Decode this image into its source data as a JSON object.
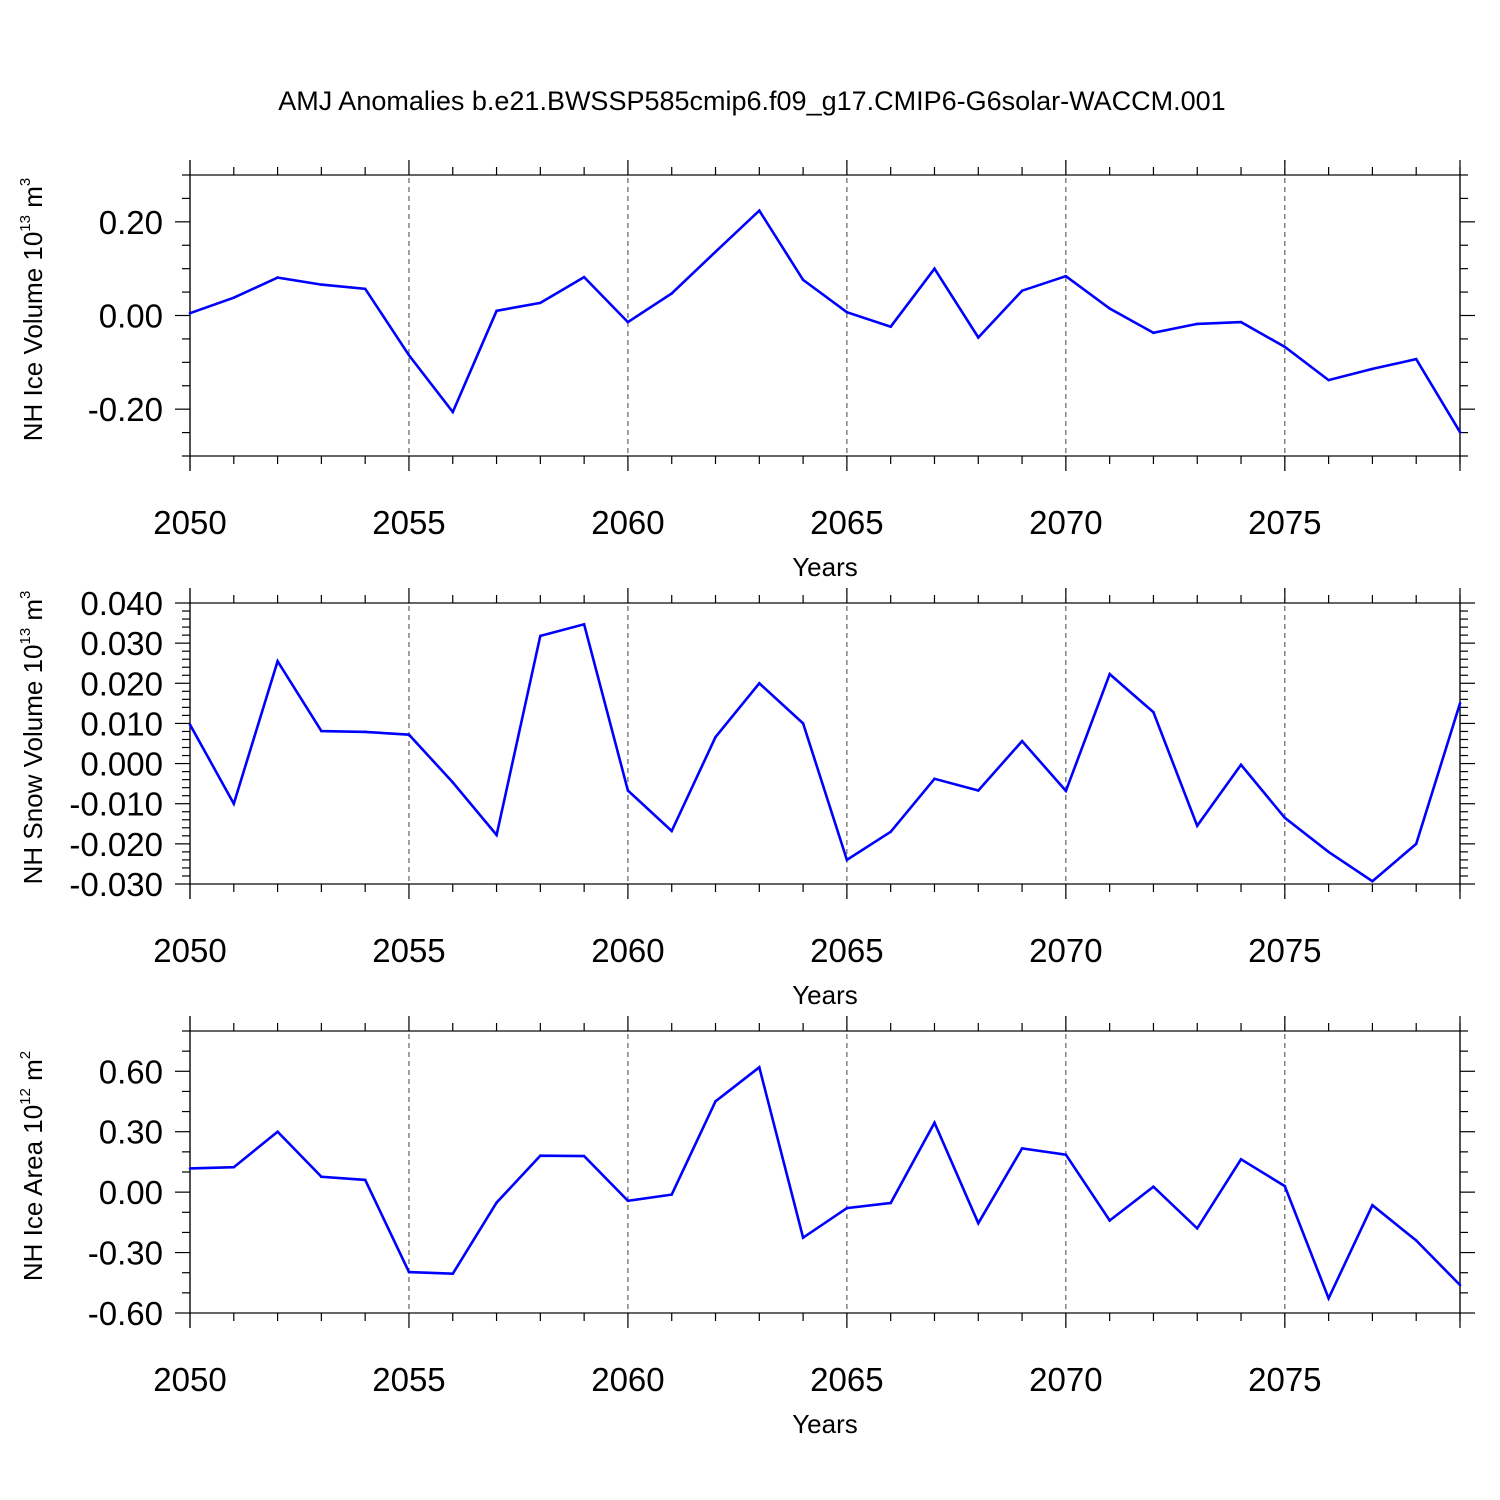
{
  "title": "AMJ Anomalies b.e21.BWSSP585cmip6.f09_g17.CMIP6-G6solar-WACCM.001",
  "colors": {
    "series": "#0000ff",
    "axis": "#000000",
    "grid": "#444444"
  },
  "chart_data": [
    {
      "type": "line",
      "ylabel": {
        "main": "NH Ice Volume 10",
        "sup1": "13",
        "mid": " m",
        "sup2": "3"
      },
      "xlabel": "Years",
      "xlim": [
        2050,
        2079
      ],
      "ylim": [
        -0.3,
        0.3
      ],
      "yticks": [
        -0.2,
        0.0,
        0.2
      ],
      "yticks_minor": [
        -0.3,
        -0.25,
        -0.15,
        -0.1,
        -0.05,
        0.05,
        0.1,
        0.15,
        0.25,
        0.3
      ],
      "ytick_labels": [
        "-0.20",
        "0.00",
        "0.20"
      ],
      "xticks": [
        2050,
        2055,
        2060,
        2065,
        2070,
        2075
      ],
      "xtick_labels": [
        "2050",
        "2055",
        "2060",
        "2065",
        "2070",
        "2075"
      ],
      "grid_x": [
        2055,
        2060,
        2065,
        2070,
        2075
      ],
      "x": [
        2050,
        2051,
        2052,
        2053,
        2054,
        2055,
        2056,
        2057,
        2058,
        2059,
        2060,
        2061,
        2062,
        2063,
        2064,
        2065,
        2066,
        2067,
        2068,
        2069,
        2070,
        2071,
        2072,
        2073,
        2074,
        2075,
        2076,
        2077,
        2078,
        2079
      ],
      "values": [
        0.005,
        0.038,
        0.081,
        0.066,
        0.057,
        -0.085,
        -0.206,
        0.01,
        0.027,
        0.082,
        -0.014,
        0.047,
        0.136,
        0.224,
        0.076,
        0.007,
        -0.024,
        0.1,
        -0.047,
        0.053,
        0.084,
        0.015,
        -0.037,
        -0.018,
        -0.014,
        -0.067,
        -0.138,
        -0.114,
        -0.093,
        -0.249
      ]
    },
    {
      "type": "line",
      "ylabel": {
        "main": "NH Snow Volume 10",
        "sup1": "13",
        "mid": " m",
        "sup2": "3"
      },
      "xlabel": "Years",
      "xlim": [
        2050,
        2079
      ],
      "ylim": [
        -0.03,
        0.04
      ],
      "yticks": [
        -0.03,
        -0.02,
        -0.01,
        0.0,
        0.01,
        0.02,
        0.03,
        0.04
      ],
      "yticks_minor": [
        -0.028,
        -0.026,
        -0.024,
        -0.022,
        -0.018,
        -0.016,
        -0.014,
        -0.012,
        -0.008,
        -0.006,
        -0.004,
        -0.002,
        0.002,
        0.004,
        0.006,
        0.008,
        0.012,
        0.014,
        0.016,
        0.018,
        0.022,
        0.024,
        0.026,
        0.028,
        0.032,
        0.034,
        0.036,
        0.038
      ],
      "ytick_labels": [
        "-0.030",
        "-0.020",
        "-0.010",
        "0.000",
        "0.010",
        "0.020",
        "0.030",
        "0.040"
      ],
      "xticks": [
        2050,
        2055,
        2060,
        2065,
        2070,
        2075
      ],
      "xtick_labels": [
        "2050",
        "2055",
        "2060",
        "2065",
        "2070",
        "2075"
      ],
      "grid_x": [
        2055,
        2060,
        2065,
        2070,
        2075
      ],
      "x": [
        2050,
        2051,
        2052,
        2053,
        2054,
        2055,
        2056,
        2057,
        2058,
        2059,
        2060,
        2061,
        2062,
        2063,
        2064,
        2065,
        2066,
        2067,
        2068,
        2069,
        2070,
        2071,
        2072,
        2073,
        2074,
        2075,
        2076,
        2077,
        2078,
        2079
      ],
      "values": [
        0.0097,
        -0.01,
        0.0255,
        0.0081,
        0.0079,
        0.0072,
        -0.0047,
        -0.0178,
        0.0318,
        0.0347,
        -0.0067,
        -0.0168,
        0.0066,
        0.02,
        0.01,
        -0.024,
        -0.017,
        -0.0038,
        -0.0067,
        0.0056,
        -0.0068,
        0.0223,
        0.0128,
        -0.0155,
        -0.0003,
        -0.0135,
        -0.022,
        -0.0293,
        -0.02,
        0.015
      ]
    },
    {
      "type": "line",
      "ylabel": {
        "main": "NH Ice Area 10",
        "sup1": "12",
        "mid": " m",
        "sup2": "2"
      },
      "xlabel": "Years",
      "xlim": [
        2050,
        2079
      ],
      "ylim": [
        -0.6,
        0.8
      ],
      "yticks": [
        -0.6,
        -0.3,
        0.0,
        0.3,
        0.6
      ],
      "yticks_minor": [
        -0.5,
        -0.4,
        -0.2,
        -0.1,
        0.1,
        0.2,
        0.4,
        0.5,
        0.7,
        0.8
      ],
      "ytick_labels": [
        "-0.60",
        "-0.30",
        "0.00",
        "0.30",
        "0.60"
      ],
      "xticks": [
        2050,
        2055,
        2060,
        2065,
        2070,
        2075
      ],
      "xtick_labels": [
        "2050",
        "2055",
        "2060",
        "2065",
        "2070",
        "2075"
      ],
      "grid_x": [
        2055,
        2060,
        2065,
        2070,
        2075
      ],
      "x": [
        2050,
        2051,
        2052,
        2053,
        2054,
        2055,
        2056,
        2057,
        2058,
        2059,
        2060,
        2061,
        2062,
        2063,
        2064,
        2065,
        2066,
        2067,
        2068,
        2069,
        2070,
        2071,
        2072,
        2073,
        2074,
        2075,
        2076,
        2077,
        2078,
        2079
      ],
      "values": [
        0.118,
        0.124,
        0.3,
        0.076,
        0.061,
        -0.397,
        -0.405,
        -0.052,
        0.181,
        0.179,
        -0.043,
        -0.012,
        0.451,
        0.62,
        -0.226,
        -0.079,
        -0.054,
        0.345,
        -0.154,
        0.217,
        0.186,
        -0.141,
        0.027,
        -0.18,
        0.163,
        0.03,
        -0.527,
        -0.065,
        -0.24,
        -0.461
      ]
    }
  ]
}
